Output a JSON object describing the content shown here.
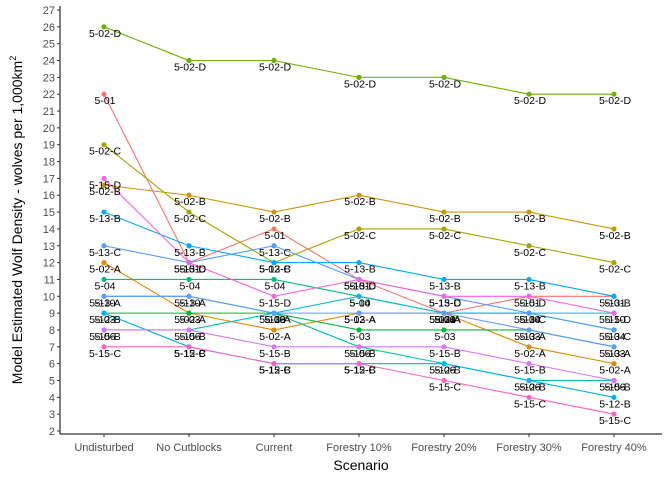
{
  "chart_data": {
    "type": "line",
    "xlabel": "Scenario",
    "ylabel": "Model Estimated Wolf Density - wolves per 1,000km",
    "ylabel_superscript": "2",
    "ylim": [
      2,
      27
    ],
    "yticks": [
      2,
      3,
      4,
      5,
      6,
      7,
      8,
      9,
      10,
      11,
      12,
      13,
      14,
      15,
      16,
      17,
      18,
      19,
      20,
      21,
      22,
      23,
      24,
      25,
      26,
      27
    ],
    "grid": false,
    "legend": "none",
    "categories": [
      "Undisturbed",
      "No Cutblocks",
      "Current",
      "Forestry 10%",
      "Forestry 20%",
      "Forestry 30%",
      "Forestry 40%"
    ],
    "series": [
      {
        "name": "5-01",
        "color": "#F8766D",
        "values": [
          22,
          12,
          14,
          11,
          9,
          10,
          10
        ]
      },
      {
        "name": "5-02-A",
        "color": "#E58700",
        "values": [
          12,
          9,
          8,
          9,
          9,
          7,
          6
        ]
      },
      {
        "name": "5-02-B",
        "color": "#C99800",
        "values": [
          16.6,
          16,
          15,
          16,
          15,
          15,
          14
        ]
      },
      {
        "name": "5-02-C",
        "color": "#A3A500",
        "values": [
          19,
          15,
          12,
          14,
          14,
          13,
          12
        ]
      },
      {
        "name": "5-02-D",
        "color": "#6BB100",
        "values": [
          26,
          24,
          24,
          23,
          23,
          22,
          22
        ]
      },
      {
        "name": "5-03",
        "color": "#00BA38",
        "values": [
          9,
          9,
          9,
          8,
          8,
          8,
          7
        ]
      },
      {
        "name": "5-04",
        "color": "#00BF7D",
        "values": [
          11,
          11,
          11,
          10,
          9,
          9,
          8
        ]
      },
      {
        "name": "5-06",
        "color": "#00C0AF",
        "values": [
          8,
          8,
          9,
          7,
          6,
          5,
          5
        ]
      },
      {
        "name": "5-10",
        "color": "#00BCD8",
        "values": [
          10,
          10,
          9,
          10,
          9,
          9,
          9
        ]
      },
      {
        "name": "5-12-B",
        "color": "#00B0F6",
        "values": [
          9,
          7,
          6,
          6,
          6,
          5,
          4
        ]
      },
      {
        "name": "5-13-A",
        "color": "#619CFF",
        "values": [
          10,
          10,
          9,
          9,
          9,
          8,
          7
        ]
      },
      {
        "name": "5-13-B",
        "color": "#00A9FF",
        "values": [
          15,
          13,
          12,
          12,
          11,
          11,
          10
        ]
      },
      {
        "name": "5-13-C",
        "color": "#529EFF",
        "values": [
          13,
          12,
          13,
          11,
          10,
          9,
          8
        ]
      },
      {
        "name": "5-15-B",
        "color": "#DB72FB",
        "values": [
          8,
          8,
          7,
          7,
          7,
          6,
          5
        ]
      },
      {
        "name": "5-15-C",
        "color": "#FF61C3",
        "values": [
          7,
          7,
          6,
          6,
          5,
          4,
          3
        ]
      },
      {
        "name": "5-15-D",
        "color": "#F564E3",
        "values": [
          17,
          12,
          10,
          11,
          10,
          10,
          9
        ]
      }
    ],
    "point_labels": [
      {
        "series": "5-01",
        "labels": [
          "5-01",
          "5-01",
          "5-01",
          "5-01",
          "5-01",
          "5-01",
          "5-01"
        ]
      },
      {
        "series": "5-02-A",
        "labels": [
          "5-02-A",
          "5-02-A",
          "5-02-A",
          "5-02-A",
          "5-02-A",
          "5-02-A",
          "5-02-A"
        ]
      }
    ]
  }
}
